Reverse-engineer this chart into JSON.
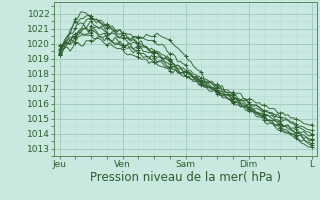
{
  "background_color": "#c8e8e0",
  "grid_major_color": "#a8ccc4",
  "grid_minor_color": "#b8dcd4",
  "line_color": "#2d5e2d",
  "xlabel": "Pression niveau de la mer( hPa )",
  "xlabel_fontsize": 8.5,
  "tick_fontsize": 6.5,
  "ylim": [
    1012.5,
    1022.8
  ],
  "yticks": [
    1013,
    1014,
    1015,
    1016,
    1017,
    1018,
    1019,
    1020,
    1021,
    1022
  ],
  "day_labels": [
    "Jeu",
    "Ven",
    "Sam",
    "Dim",
    "L"
  ],
  "day_positions": [
    0,
    24,
    48,
    72,
    96
  ],
  "xlim": [
    -2,
    98
  ],
  "total_hours": 96
}
